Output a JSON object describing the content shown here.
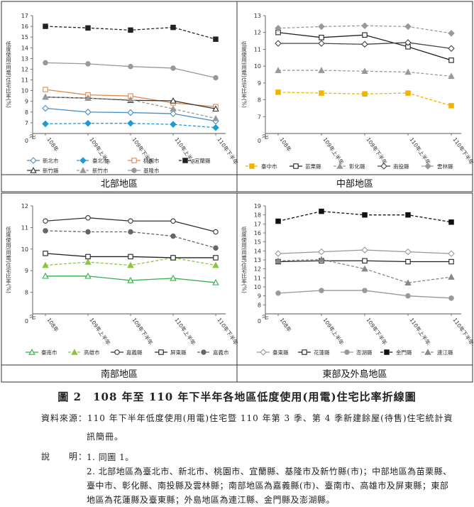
{
  "figure": {
    "caption": "圖 2　108 年至 110 年下半年各地區低度使用(用電)住宅比率折線圖",
    "source_label": "資料來源：",
    "source_text": "110 年下半年低度使用(用電)住宅暨 110 年第 3 季、第 4 季新建餘屋(待售)住宅統計資",
    "source_text_cont": "訊簡冊。",
    "notes_label": "說　　明：",
    "note_1": "1. 同圖 1。",
    "note_2": "2. 北部地區為臺北市、新北市、桃園市、宜蘭縣、基隆市及新竹縣(市)；中部地區為苗栗縣、臺中市、彰化縣、南投縣及雲林縣；南部地區為嘉義縣(市)、臺南市、高雄市及屏東縣；東部地區為花蓮縣及臺東縣；外島地區為連江縣、金門縣及澎湖縣。"
  },
  "chart_data": [
    {
      "region": "北部地區",
      "type": "line",
      "ylabel": "低度使用(用電)住宅比率(%)",
      "ylim": [
        6,
        17
      ],
      "yticks": [
        6,
        7,
        8,
        9,
        10,
        11,
        12,
        13,
        14,
        15,
        16,
        17
      ],
      "axis_break": true,
      "categories": [
        "108年",
        "109年上半年",
        "109年下半年",
        "110年上半年",
        "110年下半年"
      ],
      "series": [
        {
          "name": "新北市",
          "color": "#4a90c8",
          "dash": false,
          "marker": "diamond-open",
          "values": [
            8.35,
            8.0,
            7.95,
            7.85,
            7.15
          ]
        },
        {
          "name": "臺北市",
          "color": "#1e9bd7",
          "dash": true,
          "marker": "diamond",
          "values": [
            6.9,
            6.95,
            6.95,
            6.85,
            6.55
          ]
        },
        {
          "name": "桃園市",
          "color": "#e08a50",
          "dash": false,
          "marker": "square-open",
          "values": [
            10.1,
            9.6,
            9.5,
            8.85,
            8.5
          ]
        },
        {
          "name": "宜蘭縣",
          "color": "#222222",
          "dash": true,
          "marker": "square",
          "values": [
            16.0,
            15.85,
            15.65,
            15.9,
            14.8
          ]
        },
        {
          "name": "新竹縣",
          "color": "#333333",
          "dash": false,
          "marker": "triangle-open",
          "values": [
            9.4,
            9.3,
            9.1,
            9.05,
            8.3
          ]
        },
        {
          "name": "新竹市",
          "color": "#999999",
          "dash": true,
          "marker": "triangle",
          "values": [
            9.4,
            9.3,
            9.15,
            8.3,
            7.4
          ]
        },
        {
          "name": "基隆市",
          "color": "#999999",
          "dash": false,
          "marker": "circle",
          "values": [
            12.6,
            12.5,
            12.25,
            12.1,
            11.2
          ]
        }
      ]
    },
    {
      "region": "中部地區",
      "type": "line",
      "ylabel": "低度使用(用電)住宅比率(%)",
      "ylim": [
        6,
        13
      ],
      "yticks": [
        6,
        7,
        8,
        9,
        10,
        11,
        12,
        13
      ],
      "axis_break": true,
      "categories": [
        "108年",
        "109年上半年",
        "109年下半年",
        "110年上半年",
        "110年下半年"
      ],
      "series": [
        {
          "name": "臺中市",
          "color": "#f0b400",
          "dash": true,
          "marker": "square",
          "values": [
            8.45,
            8.4,
            8.35,
            8.4,
            7.65
          ]
        },
        {
          "name": "苗栗縣",
          "color": "#222222",
          "dash": false,
          "marker": "square-open",
          "values": [
            12.0,
            11.7,
            11.85,
            11.15,
            10.35
          ]
        },
        {
          "name": "彰化縣",
          "color": "#999999",
          "dash": true,
          "marker": "triangle",
          "values": [
            9.75,
            9.75,
            9.7,
            9.65,
            9.4
          ]
        },
        {
          "name": "南投縣",
          "color": "#444444",
          "dash": false,
          "marker": "diamond-open",
          "values": [
            11.35,
            11.35,
            11.3,
            11.4,
            11.05
          ]
        },
        {
          "name": "雲林縣",
          "color": "#999999",
          "dash": true,
          "marker": "diamond",
          "values": [
            12.25,
            12.35,
            12.4,
            12.35,
            11.95
          ]
        }
      ]
    },
    {
      "region": "南部地區",
      "type": "line",
      "ylabel": "低度使用(用電)住宅比率(%)",
      "ylim": [
        7,
        12
      ],
      "yticks": [
        7,
        8,
        9,
        10,
        11,
        12
      ],
      "axis_break": true,
      "categories": [
        "108年",
        "109年上半年",
        "109年下半年",
        "110年上半年",
        "110年下半年"
      ],
      "series": [
        {
          "name": "臺南市",
          "color": "#2eb04a",
          "dash": false,
          "marker": "triangle-open",
          "values": [
            8.75,
            8.75,
            8.55,
            8.65,
            8.45
          ]
        },
        {
          "name": "高雄市",
          "color": "#8cc63f",
          "dash": true,
          "marker": "triangle",
          "values": [
            9.25,
            9.4,
            9.25,
            9.6,
            9.25
          ]
        },
        {
          "name": "嘉義縣",
          "color": "#333333",
          "dash": false,
          "marker": "circle-open",
          "values": [
            11.3,
            11.45,
            11.3,
            11.3,
            10.8
          ]
        },
        {
          "name": "屏東縣",
          "color": "#222222",
          "dash": false,
          "marker": "square-open",
          "values": [
            9.8,
            9.65,
            9.65,
            9.6,
            9.6
          ]
        },
        {
          "name": "嘉義市",
          "color": "#666666",
          "dash": true,
          "marker": "circle",
          "values": [
            10.85,
            10.8,
            10.8,
            10.6,
            10.05
          ]
        }
      ]
    },
    {
      "region": "東部及外島地區",
      "type": "line",
      "ylabel": "低度使用(用電)住宅比率(%)",
      "ylim": [
        7,
        19
      ],
      "yticks": [
        7,
        8,
        9,
        10,
        11,
        12,
        13,
        14,
        15,
        16,
        17,
        18,
        19
      ],
      "axis_break": true,
      "categories": [
        "108年",
        "109年上半年",
        "109年下半年",
        "110年上半年",
        "110年下半年"
      ],
      "series": [
        {
          "name": "臺東縣",
          "color": "#999999",
          "dash": false,
          "marker": "diamond-open",
          "values": [
            13.7,
            13.9,
            14.1,
            13.9,
            13.7
          ]
        },
        {
          "name": "花蓮縣",
          "color": "#222222",
          "dash": false,
          "marker": "square-open",
          "values": [
            12.8,
            12.9,
            12.9,
            12.8,
            12.8
          ]
        },
        {
          "name": "澎湖縣",
          "color": "#999999",
          "dash": false,
          "marker": "circle",
          "values": [
            9.3,
            9.6,
            9.6,
            9.0,
            8.75
          ]
        },
        {
          "name": "金門縣",
          "color": "#111111",
          "dash": true,
          "marker": "square",
          "values": [
            17.3,
            18.4,
            18.0,
            18.0,
            17.2
          ]
        },
        {
          "name": "連江縣",
          "color": "#888888",
          "dash": true,
          "marker": "triangle",
          "values": [
            12.9,
            13.05,
            12.0,
            10.45,
            11.1
          ]
        }
      ]
    }
  ]
}
